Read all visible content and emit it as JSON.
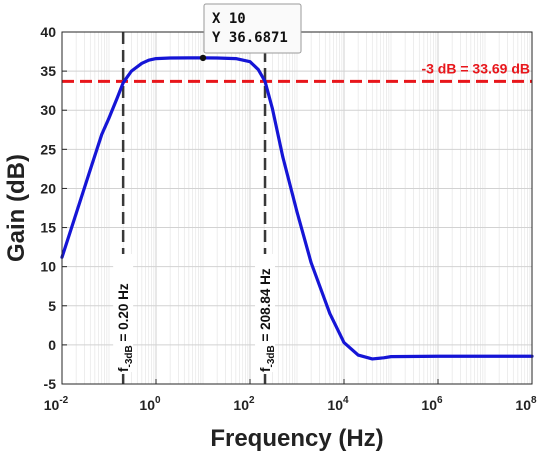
{
  "chart_data": {
    "type": "line",
    "xlabel": "Frequency (Hz)",
    "ylabel": "Gain (dB)",
    "xscale": "log",
    "xlim": [
      0.01,
      100000000
    ],
    "ylim": [
      -5,
      40
    ],
    "grid": true,
    "x_tick_labels": [
      {
        "base": "10",
        "exp": "-2"
      },
      {
        "base": "10",
        "exp": "0"
      },
      {
        "base": "10",
        "exp": "2"
      },
      {
        "base": "10",
        "exp": "4"
      },
      {
        "base": "10",
        "exp": "6"
      },
      {
        "base": "10",
        "exp": "8"
      }
    ],
    "y_ticks": [
      -5,
      0,
      5,
      10,
      15,
      20,
      25,
      30,
      35,
      40
    ],
    "series": [
      {
        "color": "#1515d6",
        "x": [
          0.01,
          0.02,
          0.04,
          0.07,
          0.1,
          0.15,
          0.2,
          0.3,
          0.5,
          0.7,
          1,
          2,
          5,
          10,
          20,
          50,
          100,
          150,
          208.84,
          300,
          500,
          1000,
          2000,
          5000,
          10000,
          20000,
          40000,
          70000,
          100000,
          1000000,
          100000000
        ],
        "y": [
          11.2,
          16.8,
          22.4,
          26.9,
          29.0,
          31.6,
          33.5,
          35.0,
          36.0,
          36.4,
          36.6,
          36.68,
          36.69,
          36.6871,
          36.68,
          36.6,
          36.2,
          35.2,
          33.69,
          30.2,
          24.0,
          17.0,
          10.5,
          4.0,
          0.3,
          -1.3,
          -1.8,
          -1.65,
          -1.5,
          -1.45,
          -1.45
        ]
      }
    ],
    "reference_line": {
      "y": 33.69,
      "label": "-3 dB = 33.69 dB",
      "color": "#e8161b"
    },
    "cutoff_lines": [
      {
        "x": 0.2,
        "value_label": "= 0.20 Hz",
        "sym": "f",
        "sub": "-3dB"
      },
      {
        "x": 208.84,
        "value_label": "= 208.84 Hz",
        "sym": "f",
        "sub": "-3dB"
      }
    ],
    "datatip": {
      "x": 10,
      "y": 36.6871,
      "line1": "X 10",
      "line2": "Y 36.6871"
    }
  }
}
